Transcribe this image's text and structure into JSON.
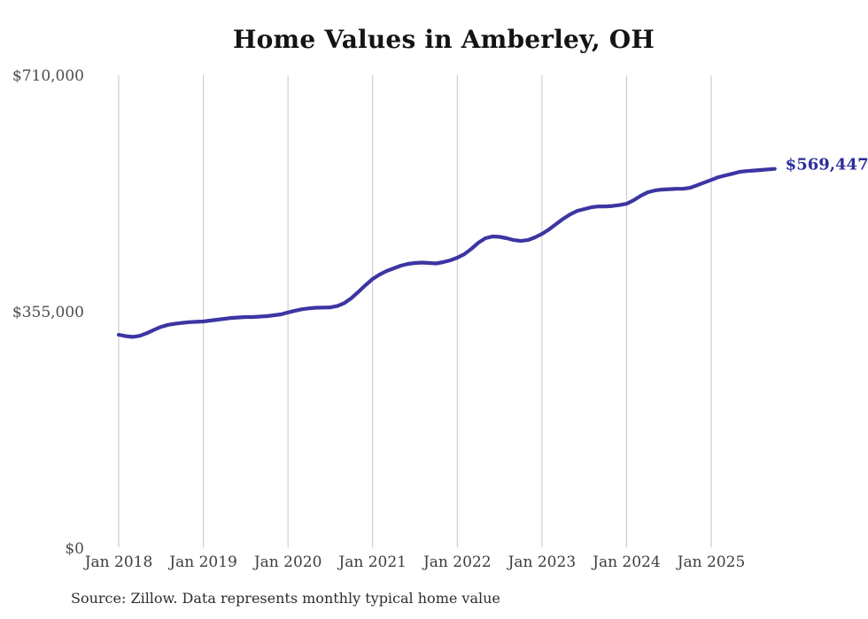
{
  "page": {
    "title": "Home Values in Amberley, OH",
    "source_note": "Source: Zillow. Data represents monthly typical home value"
  },
  "chart_data": {
    "type": "line",
    "title": "Home Values in Amberley, OH",
    "series_name": "Monthly typical home value",
    "start_month": "2018-01",
    "end_month": "2025-10",
    "values": [
      320400,
      318300,
      317300,
      318800,
      322800,
      327700,
      332300,
      335300,
      336900,
      338300,
      339300,
      339900,
      340400,
      341700,
      343000,
      344400,
      345700,
      346400,
      347000,
      347000,
      347700,
      348400,
      349700,
      351000,
      353900,
      356500,
      358700,
      360100,
      361000,
      361300,
      361500,
      363500,
      368000,
      375500,
      385000,
      395000,
      404200,
      410800,
      416100,
      420100,
      424100,
      426800,
      428100,
      428800,
      428100,
      427500,
      429500,
      432100,
      436100,
      441400,
      449400,
      458700,
      465300,
      468000,
      467300,
      465300,
      462600,
      461300,
      462600,
      466600,
      471900,
      478500,
      486500,
      494500,
      501100,
      506400,
      509100,
      511700,
      513100,
      513100,
      513700,
      515100,
      517100,
      522400,
      529000,
      534300,
      537000,
      538300,
      539000,
      539600,
      539600,
      541000,
      544900,
      548900,
      552900,
      556900,
      559600,
      562200,
      564900,
      566200,
      567000,
      567800,
      568600,
      569447
    ],
    "x_ticks": [
      {
        "label": "Jan 2018",
        "month_index": 0
      },
      {
        "label": "Jan 2019",
        "month_index": 12
      },
      {
        "label": "Jan 2020",
        "month_index": 24
      },
      {
        "label": "Jan 2021",
        "month_index": 36
      },
      {
        "label": "Jan 2022",
        "month_index": 48
      },
      {
        "label": "Jan 2023",
        "month_index": 60
      },
      {
        "label": "Jan 2024",
        "month_index": 72
      },
      {
        "label": "Jan 2025",
        "month_index": 84
      }
    ],
    "y_ticks": [
      {
        "label": "$0",
        "value": 0
      },
      {
        "label": "$355,000",
        "value": 355000
      },
      {
        "label": "$710,000",
        "value": 710000
      }
    ],
    "ylim": [
      0,
      710000
    ],
    "end_label": "$569,447",
    "grid": "vertical-year-lines-only",
    "legend": "none",
    "colors": {
      "line": "#3c35a2",
      "end_label": "#2c2c9c",
      "gridline": "#c6c6c6",
      "title": "#141414",
      "y_tick": "#4d4d4d",
      "x_tick": "#3d3d3d",
      "source": "#2e2e2e",
      "background": "#ffffff"
    }
  }
}
